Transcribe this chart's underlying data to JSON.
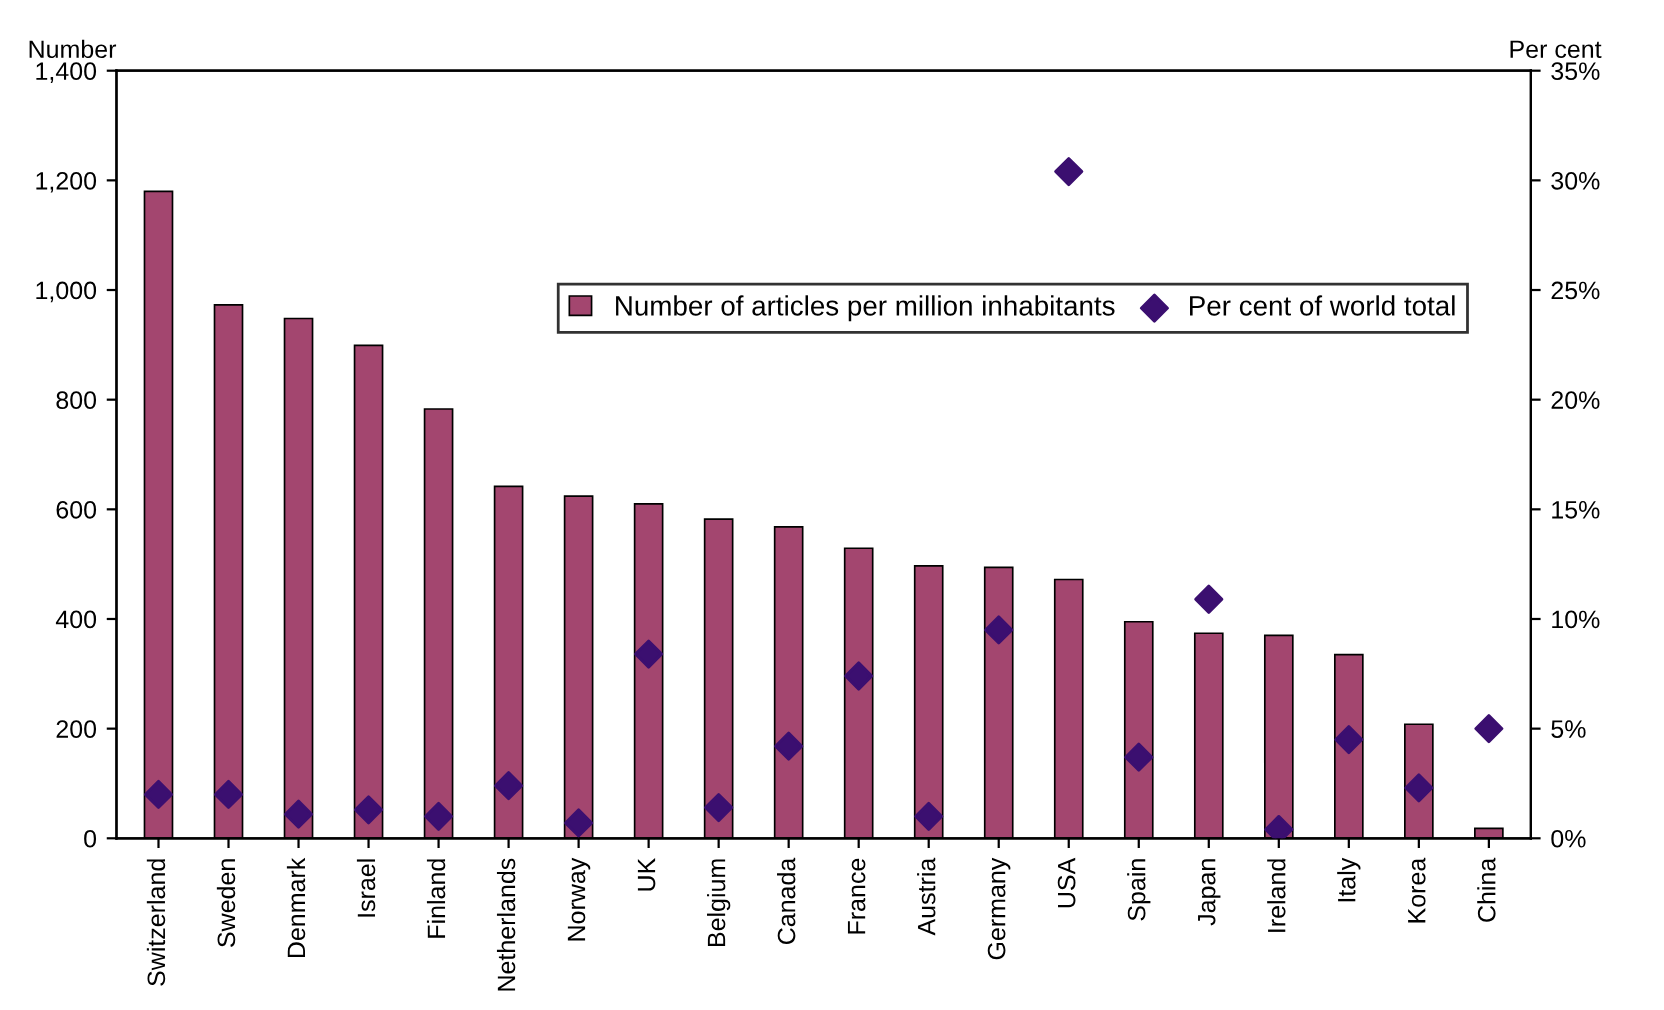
{
  "chart_data": {
    "type": "bar",
    "categories": [
      "Switzerland",
      "Sweden",
      "Denmark",
      "Israel",
      "Finland",
      "Netherlands",
      "Norway",
      "UK",
      "Belgium",
      "Canada",
      "France",
      "Austria",
      "Germany",
      "USA",
      "Spain",
      "Japan",
      "Ireland",
      "Italy",
      "Korea",
      "China"
    ],
    "series": [
      {
        "name": "Number of articles per million inhabitants",
        "color": "#a3466f",
        "values": [
          1180,
          973,
          948,
          899,
          783,
          642,
          624,
          610,
          582,
          568,
          529,
          497,
          494,
          472,
          395,
          374,
          370,
          335,
          208,
          18
        ]
      },
      {
        "name": "Per cent of world total",
        "type": "scatter",
        "axis": "y2",
        "color": "#3b0f70",
        "values": [
          2.0,
          2.0,
          1.1,
          1.3,
          1.0,
          2.4,
          0.7,
          8.4,
          1.4,
          4.2,
          7.4,
          1.0,
          9.5,
          30.4,
          3.7,
          10.9,
          0.4,
          4.5,
          2.3,
          5.0
        ]
      }
    ],
    "ylabel": "Number",
    "y2label": "Per cent",
    "ylim": [
      0,
      1400
    ],
    "yticks": [
      0,
      200,
      400,
      600,
      800,
      {
        "value": 1000,
        "label": "1,000"
      },
      {
        "value": 1200,
        "label": "1,200"
      },
      {
        "value": 1400,
        "label": "1,400"
      }
    ],
    "y2lim": [
      0,
      35
    ],
    "y2ticks": [
      {
        "value": 0,
        "label": "0%"
      },
      {
        "value": 5,
        "label": "5%"
      },
      {
        "value": 10,
        "label": "10%"
      },
      {
        "value": 15,
        "label": "15%"
      },
      {
        "value": 20,
        "label": "20%"
      },
      {
        "value": 25,
        "label": "25%"
      },
      {
        "value": 30,
        "label": "30%"
      },
      {
        "value": 35,
        "label": "35%"
      }
    ],
    "marker": "diamond",
    "legend": "top right",
    "grid": false
  }
}
